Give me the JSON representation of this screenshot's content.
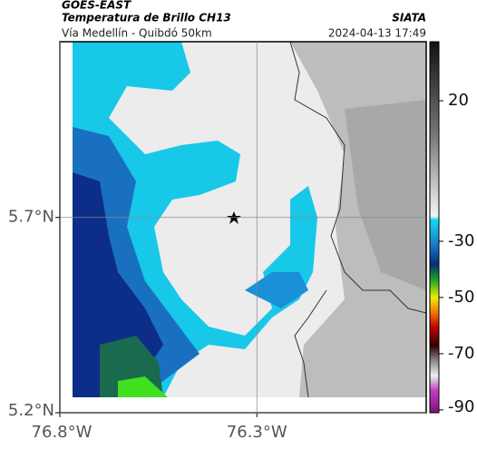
{
  "header": {
    "source": "GOES-EAST",
    "title": "Temperatura de Brillo CH13",
    "org": "SIATA",
    "subtitle": "Vía Medellín - Quibdó 50km",
    "timestamp": "2024-04-13 17:49"
  },
  "map": {
    "xlim": [
      -76.8,
      -75.87
    ],
    "ylim": [
      5.2,
      6.15
    ],
    "xticks": [
      {
        "value": -76.8,
        "label": "76.8°W"
      },
      {
        "value": -76.3,
        "label": "76.3°W"
      }
    ],
    "yticks": [
      {
        "value": 5.7,
        "label": "5.7°N"
      },
      {
        "value": 5.2,
        "label": "5.2°N"
      }
    ],
    "grid": true
  },
  "colorbar": {
    "clim": [
      -91,
      41
    ],
    "ticks": [
      20,
      -30,
      -50,
      -70,
      -90
    ]
  }
}
